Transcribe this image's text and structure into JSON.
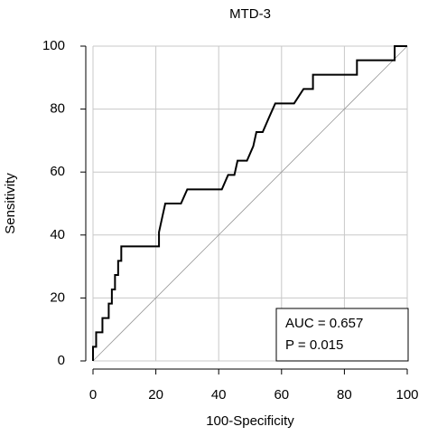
{
  "chart_data": {
    "type": "line",
    "title": "MTD-3",
    "x_label": "100-Specificity",
    "y_label": "Sensitivity",
    "x": [
      0,
      0,
      1,
      1,
      3,
      3,
      5,
      5,
      6,
      6,
      7,
      7,
      8,
      8,
      9,
      9,
      10,
      21,
      21,
      22,
      23,
      28,
      30,
      41,
      43,
      45,
      46,
      49,
      51,
      52,
      54,
      56,
      58,
      64,
      67,
      70,
      70,
      84,
      84,
      96,
      96,
      100
    ],
    "values": [
      0,
      4.5,
      4.5,
      9.1,
      9.1,
      13.6,
      13.6,
      18.2,
      18.2,
      22.7,
      22.7,
      27.3,
      27.3,
      31.8,
      31.8,
      36.4,
      36.4,
      36.4,
      40.9,
      45.5,
      50,
      50,
      54.5,
      54.5,
      59.1,
      59.1,
      63.6,
      63.6,
      68.2,
      72.7,
      72.7,
      77.3,
      81.8,
      81.8,
      86.4,
      86.4,
      90.9,
      90.9,
      95.5,
      95.5,
      100,
      100
    ],
    "color": "#000000",
    "xlim": [
      0,
      100
    ],
    "ylim": [
      0,
      100
    ],
    "xticks": [
      0,
      20,
      40,
      60,
      80,
      100
    ],
    "yticks": [
      0,
      20,
      40,
      60,
      80,
      100
    ],
    "grid": true,
    "annotations": [
      "AUC = 0.657",
      "P = 0.015"
    ]
  }
}
